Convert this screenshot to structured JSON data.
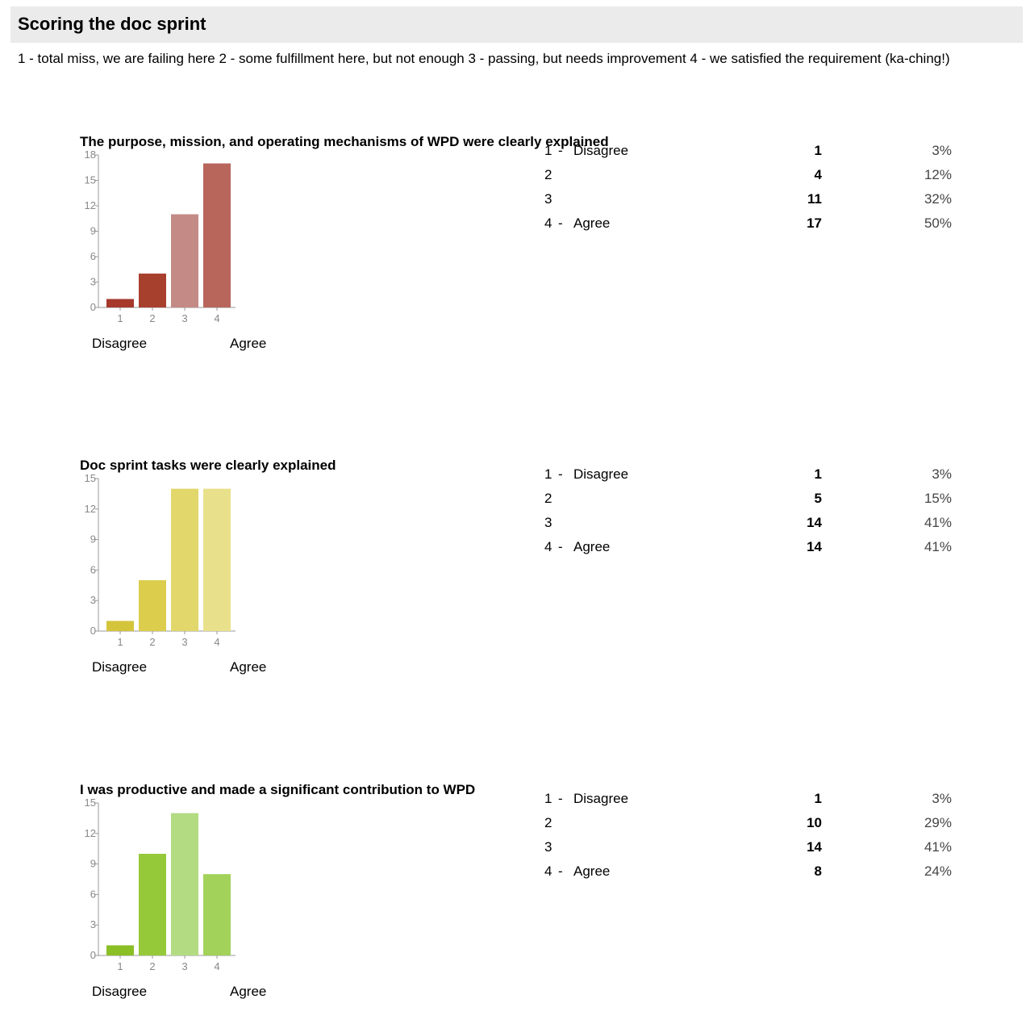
{
  "header": {
    "title": "Scoring the doc sprint"
  },
  "description": "1 - total miss, we are failing here 2 - some fulfillment here, but not enough 3 - passing, but needs improvement 4 - we satisfied the requirement (ka-ching!)",
  "scale": {
    "low_label": "Disagree",
    "high_label": "Agree"
  },
  "questions": [
    {
      "title": "The purpose, mission, and operating mechanisms of WPD were clearly explained",
      "rows": [
        {
          "num": "1",
          "dash": "-",
          "label": "Disagree",
          "count": "1",
          "pct": "3%"
        },
        {
          "num": "2",
          "dash": "",
          "label": "",
          "count": "4",
          "pct": "12%"
        },
        {
          "num": "3",
          "dash": "",
          "label": "",
          "count": "11",
          "pct": "32%"
        },
        {
          "num": "4",
          "dash": "-",
          "label": "Agree",
          "count": "17",
          "pct": "50%"
        }
      ]
    },
    {
      "title": "Doc sprint tasks were clearly explained",
      "rows": [
        {
          "num": "1",
          "dash": "-",
          "label": "Disagree",
          "count": "1",
          "pct": "3%"
        },
        {
          "num": "2",
          "dash": "",
          "label": "",
          "count": "5",
          "pct": "15%"
        },
        {
          "num": "3",
          "dash": "",
          "label": "",
          "count": "14",
          "pct": "41%"
        },
        {
          "num": "4",
          "dash": "-",
          "label": "Agree",
          "count": "14",
          "pct": "41%"
        }
      ]
    },
    {
      "title": "I was productive and made a significant contribution to WPD",
      "rows": [
        {
          "num": "1",
          "dash": "-",
          "label": "Disagree",
          "count": "1",
          "pct": "3%"
        },
        {
          "num": "2",
          "dash": "",
          "label": "",
          "count": "10",
          "pct": "29%"
        },
        {
          "num": "3",
          "dash": "",
          "label": "",
          "count": "14",
          "pct": "41%"
        },
        {
          "num": "4",
          "dash": "-",
          "label": "Agree",
          "count": "8",
          "pct": "24%"
        }
      ]
    }
  ],
  "chart_data": [
    {
      "type": "bar",
      "title": "The purpose, mission, and operating mechanisms of WPD were clearly explained",
      "categories": [
        "1",
        "2",
        "3",
        "4"
      ],
      "values": [
        1,
        4,
        11,
        17
      ],
      "ylim": [
        0,
        18
      ],
      "yticks": [
        "0",
        "3",
        "6",
        "9",
        "12",
        "15",
        "18"
      ],
      "colors": [
        "#a6392c",
        "#a8402e",
        "#c48a86",
        "#b8665c"
      ]
    },
    {
      "type": "bar",
      "title": "Doc sprint tasks were clearly explained",
      "categories": [
        "1",
        "2",
        "3",
        "4"
      ],
      "values": [
        1,
        5,
        14,
        14
      ],
      "ylim": [
        0,
        15
      ],
      "yticks": [
        "0",
        "3",
        "6",
        "9",
        "12",
        "15"
      ],
      "colors": [
        "#d4c43c",
        "#dccd4c",
        "#e2d76a",
        "#e9e08b"
      ]
    },
    {
      "type": "bar",
      "title": "I was productive and made a significant contribution to WPD",
      "categories": [
        "1",
        "2",
        "3",
        "4"
      ],
      "values": [
        1,
        10,
        14,
        8
      ],
      "ylim": [
        0,
        15
      ],
      "yticks": [
        "0",
        "3",
        "6",
        "9",
        "12",
        "15"
      ],
      "colors": [
        "#8bbf26",
        "#96c93a",
        "#b3db82",
        "#a2d25a"
      ]
    }
  ]
}
